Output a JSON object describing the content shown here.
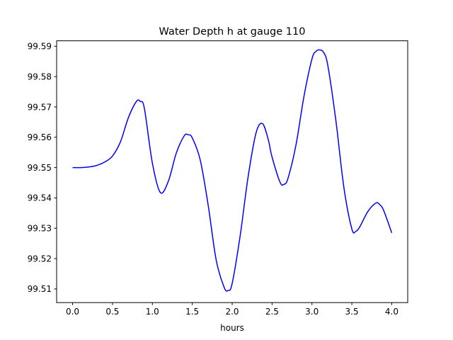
{
  "chart_data": {
    "type": "line",
    "title": "Water Depth h at gauge 110",
    "xlabel": "hours",
    "ylabel": "",
    "xlim": [
      -0.2,
      4.2
    ],
    "ylim": [
      99.5055,
      99.5918
    ],
    "xticks": [
      {
        "value": 0.0,
        "label": "0.0"
      },
      {
        "value": 0.5,
        "label": "0.5"
      },
      {
        "value": 1.0,
        "label": "1.0"
      },
      {
        "value": 1.5,
        "label": "1.5"
      },
      {
        "value": 2.0,
        "label": "2.0"
      },
      {
        "value": 2.5,
        "label": "2.5"
      },
      {
        "value": 3.0,
        "label": "3.0"
      },
      {
        "value": 3.5,
        "label": "3.5"
      },
      {
        "value": 4.0,
        "label": "4.0"
      }
    ],
    "yticks": [
      {
        "value": 99.51,
        "label": "99.51"
      },
      {
        "value": 99.52,
        "label": "99.52"
      },
      {
        "value": 99.53,
        "label": "99.53"
      },
      {
        "value": 99.54,
        "label": "99.54"
      },
      {
        "value": 99.55,
        "label": "99.55"
      },
      {
        "value": 99.56,
        "label": "99.56"
      },
      {
        "value": 99.57,
        "label": "99.57"
      },
      {
        "value": 99.58,
        "label": "99.58"
      },
      {
        "value": 99.59,
        "label": "99.59"
      }
    ],
    "grid": false,
    "series": [
      {
        "color": "#0000ff",
        "x": [
          0.0,
          0.1,
          0.2,
          0.3,
          0.4,
          0.5,
          0.6,
          0.7,
          0.8,
          0.85,
          0.9,
          1.0,
          1.1,
          1.2,
          1.3,
          1.4,
          1.45,
          1.5,
          1.6,
          1.7,
          1.8,
          1.9,
          1.95,
          2.0,
          2.1,
          2.2,
          2.3,
          2.38,
          2.45,
          2.5,
          2.6,
          2.65,
          2.7,
          2.8,
          2.9,
          3.0,
          3.05,
          3.1,
          3.15,
          3.2,
          3.3,
          3.4,
          3.5,
          3.55,
          3.6,
          3.7,
          3.8,
          3.85,
          3.9,
          4.0
        ],
        "y": [
          99.55,
          99.55,
          99.5502,
          99.5507,
          99.5518,
          99.5538,
          99.5585,
          99.5665,
          99.5718,
          99.5718,
          99.5695,
          99.5515,
          99.5418,
          99.5455,
          99.5548,
          99.5605,
          99.5608,
          99.5598,
          99.5525,
          99.5375,
          99.5195,
          99.5105,
          99.5095,
          99.5118,
          99.5275,
          99.547,
          99.5615,
          99.5645,
          99.5595,
          99.5535,
          99.5452,
          99.5445,
          99.5465,
          99.5575,
          99.5735,
          99.5858,
          99.5883,
          99.5888,
          99.5878,
          99.5835,
          99.5655,
          99.5435,
          99.5298,
          99.529,
          99.5305,
          99.5355,
          99.5383,
          99.5378,
          99.5358,
          99.5285
        ]
      }
    ]
  }
}
